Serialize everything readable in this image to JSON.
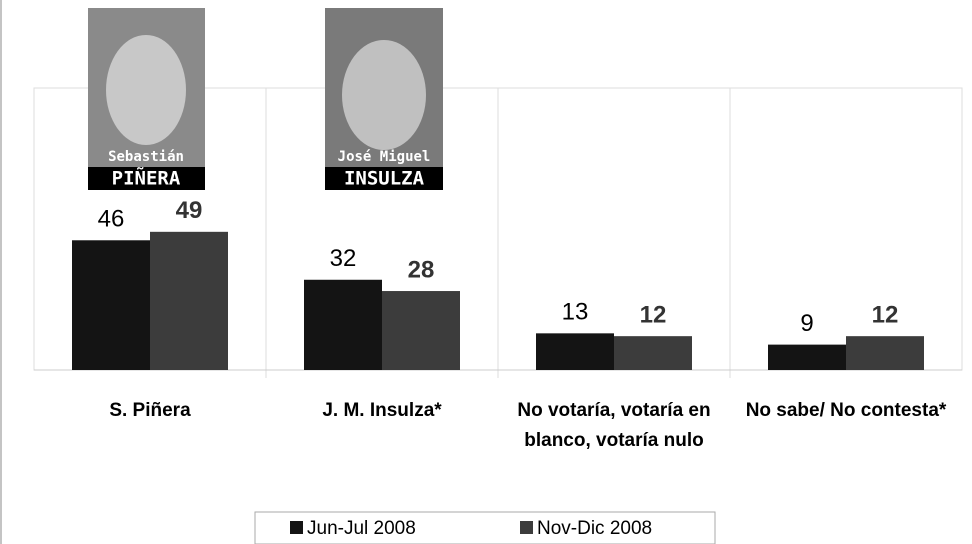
{
  "chart_data": {
    "type": "bar",
    "categories": [
      "S. Piñera",
      "J. M. Insulza*",
      "No votaría, votaría en blanco, votaría nulo",
      "No sabe/ No contesta*"
    ],
    "series": [
      {
        "name": "Jun-Jul 2008",
        "color": "#141414",
        "values": [
          46,
          32,
          13,
          9
        ]
      },
      {
        "name": "Nov-Dic 2008",
        "color": "#3c3c3c",
        "values": [
          49,
          28,
          12,
          12
        ]
      }
    ],
    "ylim": [
      0,
      100
    ],
    "grid": true,
    "legend": "bottom",
    "annotations": [
      "Sebastián",
      "PIÑERA",
      "José Miguel",
      "INSULZA"
    ]
  }
}
